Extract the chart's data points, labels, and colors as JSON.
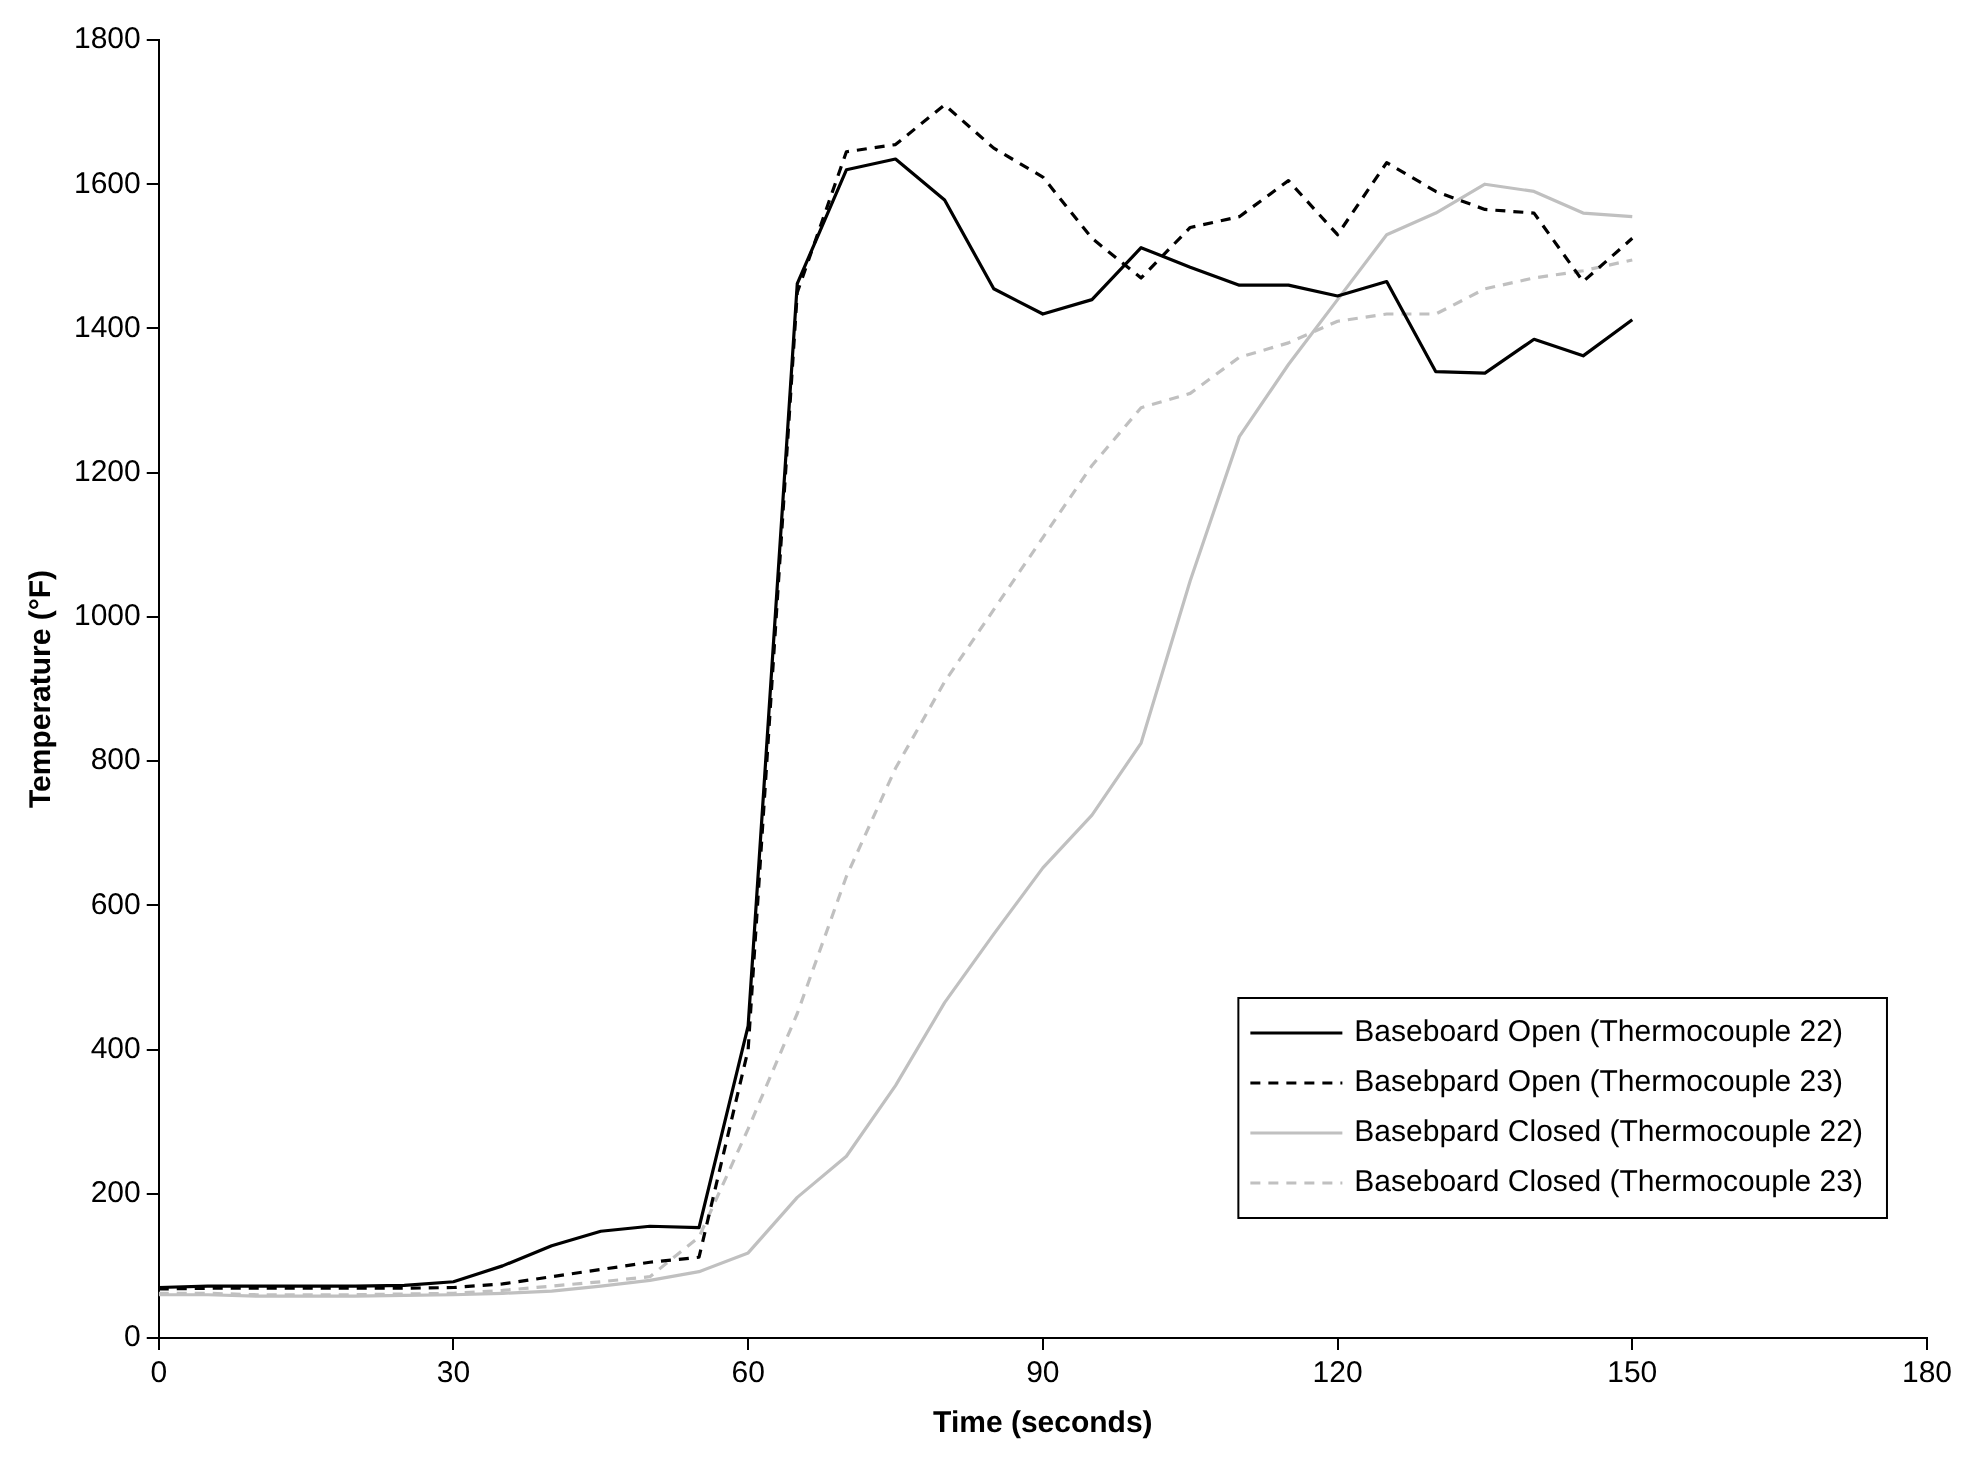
{
  "chart_data": {
    "type": "line",
    "xlabel": "Time (seconds)",
    "ylabel": "Temperature (°F)",
    "x": [
      0,
      5,
      10,
      15,
      20,
      25,
      30,
      35,
      40,
      45,
      50,
      55,
      60,
      65,
      70,
      75,
      80,
      85,
      90,
      95,
      100,
      105,
      110,
      115,
      120,
      125,
      130,
      135,
      140,
      145,
      150
    ],
    "series": [
      {
        "name": "Baseboard Open (Thermocouple 22)",
        "color": "#000000",
        "line_style": "solid",
        "values": [
          70,
          72,
          72,
          72,
          72,
          73,
          78,
          100,
          128,
          148,
          155,
          153,
          433,
          1462,
          1620,
          1635,
          1578,
          1455,
          1420,
          1440,
          1512,
          1485,
          1460,
          1460,
          1445,
          1465,
          1340,
          1338,
          1385,
          1362,
          1412
        ]
      },
      {
        "name": "Basebpard Open (Thermocouple 23)",
        "color": "#000000",
        "line_style": "dashed",
        "values": [
          68,
          69,
          69,
          69,
          69,
          69,
          70,
          75,
          85,
          95,
          105,
          112,
          400,
          1450,
          1645,
          1655,
          1710,
          1650,
          1610,
          1525,
          1470,
          1540,
          1555,
          1605,
          1530,
          1630,
          1590,
          1565,
          1560,
          1465,
          1525
        ]
      },
      {
        "name": "Basebpard Closed (Thermocouple 22)",
        "color": "#c0c0c0",
        "line_style": "solid",
        "values": [
          60,
          60,
          58,
          58,
          58,
          59,
          60,
          62,
          65,
          72,
          80,
          92,
          118,
          195,
          252,
          350,
          465,
          560,
          652,
          725,
          825,
          1050,
          1250,
          1350,
          1440,
          1530,
          1560,
          1600,
          1590,
          1560,
          1555
        ]
      },
      {
        "name": "Baseboard Closed (Thermocouple 23)",
        "color": "#c0c0c0",
        "line_style": "dashed",
        "values": [
          62,
          62,
          60,
          60,
          60,
          61,
          62,
          66,
          72,
          78,
          85,
          140,
          290,
          450,
          640,
          790,
          910,
          1010,
          1110,
          1210,
          1290,
          1310,
          1360,
          1380,
          1410,
          1420,
          1420,
          1455,
          1470,
          1480,
          1495
        ]
      }
    ],
    "xlim": [
      0,
      180
    ],
    "xticks": [
      0,
      30,
      60,
      90,
      120,
      150,
      180
    ],
    "ylim": [
      0,
      1800
    ],
    "yticks": [
      0,
      200,
      400,
      600,
      800,
      1000,
      1200,
      1400,
      1600,
      1800
    ],
    "grid": false,
    "legend": "bottom right",
    "marker": "none"
  }
}
